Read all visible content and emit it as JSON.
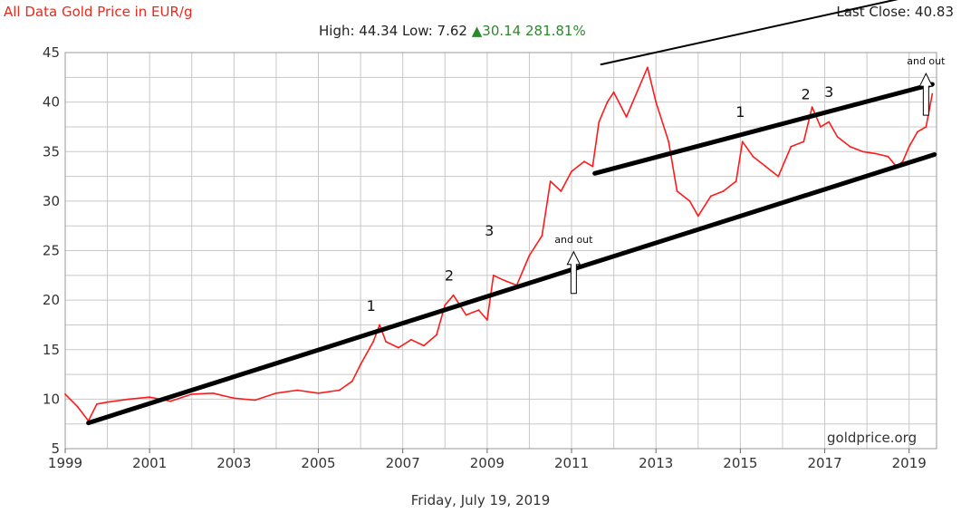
{
  "header": {
    "title": "All Data Gold Price in EUR/g",
    "last_close": "Last Close: 40.83",
    "high_low": "High: 44.34 Low: 7.62",
    "change": "▲30.14 281.81%",
    "watermark": "goldprice.org",
    "date": "Friday, July 19, 2019"
  },
  "colors": {
    "line": "#ff1a1a",
    "title": "#e8291c",
    "change": "#2a8a2a",
    "grid": "#c8c8c8",
    "trendline": "#000000"
  },
  "chart_data": {
    "type": "line",
    "title": "All Data Gold Price in EUR/g",
    "xlim": [
      1999.0,
      2019.65
    ],
    "ylim": [
      5,
      45
    ],
    "xticks": [
      1999,
      2001,
      2003,
      2005,
      2007,
      2009,
      2011,
      2013,
      2015,
      2017,
      2019
    ],
    "yticks": [
      5,
      10,
      15,
      20,
      25,
      30,
      35,
      40,
      45
    ],
    "grid": true,
    "series": [
      {
        "x": [
          1999.0,
          1999.3,
          1999.55,
          1999.75,
          2000.0,
          2000.5,
          2001.0,
          2001.5,
          2002.0,
          2002.5,
          2003.0,
          2003.5,
          2004.0,
          2004.5,
          2005.0,
          2005.5,
          2005.8,
          2006.0,
          2006.3,
          2006.45,
          2006.6,
          2006.9,
          2007.2,
          2007.5,
          2007.8,
          2008.0,
          2008.2,
          2008.5,
          2008.8,
          2009.0,
          2009.15,
          2009.4,
          2009.7,
          2010.0,
          2010.3,
          2010.5,
          2010.75,
          2011.0,
          2011.3,
          2011.5,
          2011.65,
          2011.85,
          2012.0,
          2012.3,
          2012.6,
          2012.8,
          2013.0,
          2013.3,
          2013.5,
          2013.8,
          2014.0,
          2014.3,
          2014.6,
          2014.9,
          2015.05,
          2015.3,
          2015.6,
          2015.9,
          2016.2,
          2016.5,
          2016.7,
          2016.9,
          2017.1,
          2017.3,
          2017.6,
          2017.9,
          2018.2,
          2018.5,
          2018.7,
          2018.85,
          2019.0,
          2019.2,
          2019.4,
          2019.55
        ],
        "values": [
          10.5,
          9.2,
          7.8,
          9.5,
          9.7,
          10.0,
          10.2,
          9.8,
          10.5,
          10.6,
          10.1,
          9.9,
          10.6,
          10.9,
          10.6,
          10.9,
          11.8,
          13.5,
          15.8,
          17.5,
          15.8,
          15.2,
          16.0,
          15.4,
          16.5,
          19.5,
          20.5,
          18.5,
          19.0,
          18.0,
          22.5,
          22.0,
          21.5,
          24.5,
          26.5,
          32.0,
          31.0,
          33.0,
          34.0,
          33.5,
          38.0,
          40.0,
          41.0,
          38.5,
          41.5,
          43.5,
          40.0,
          36.0,
          31.0,
          30.0,
          28.5,
          30.5,
          31.0,
          32.0,
          36.0,
          34.5,
          33.5,
          32.5,
          35.5,
          36.0,
          39.5,
          37.5,
          38.0,
          36.5,
          35.5,
          35.0,
          34.8,
          34.5,
          33.5,
          34.0,
          35.5,
          37.0,
          37.5,
          40.83
        ]
      }
    ],
    "annotations": [
      {
        "text": "1",
        "x": 2006.25,
        "y": 18.9
      },
      {
        "text": "2",
        "x": 2008.1,
        "y": 22.0
      },
      {
        "text": "3",
        "x": 2009.05,
        "y": 26.5
      },
      {
        "text": "1",
        "x": 2015.0,
        "y": 38.5
      },
      {
        "text": "2",
        "x": 2016.55,
        "y": 40.3
      },
      {
        "text": "3",
        "x": 2017.1,
        "y": 40.5
      },
      {
        "text": "and out",
        "x": 2011.05,
        "y": 25.8
      },
      {
        "text": "and out",
        "x": 2019.4,
        "y": 43.8
      }
    ],
    "trendlines": [
      {
        "from": [
          1999.55,
          7.6
        ],
        "to": [
          2019.6,
          34.7
        ]
      },
      {
        "from": [
          2011.55,
          32.8
        ],
        "to": [
          2019.55,
          41.8
        ]
      },
      {
        "from": [
          2011.7,
          43.8
        ],
        "to": [
          2018.85,
          50.5
        ]
      }
    ]
  }
}
